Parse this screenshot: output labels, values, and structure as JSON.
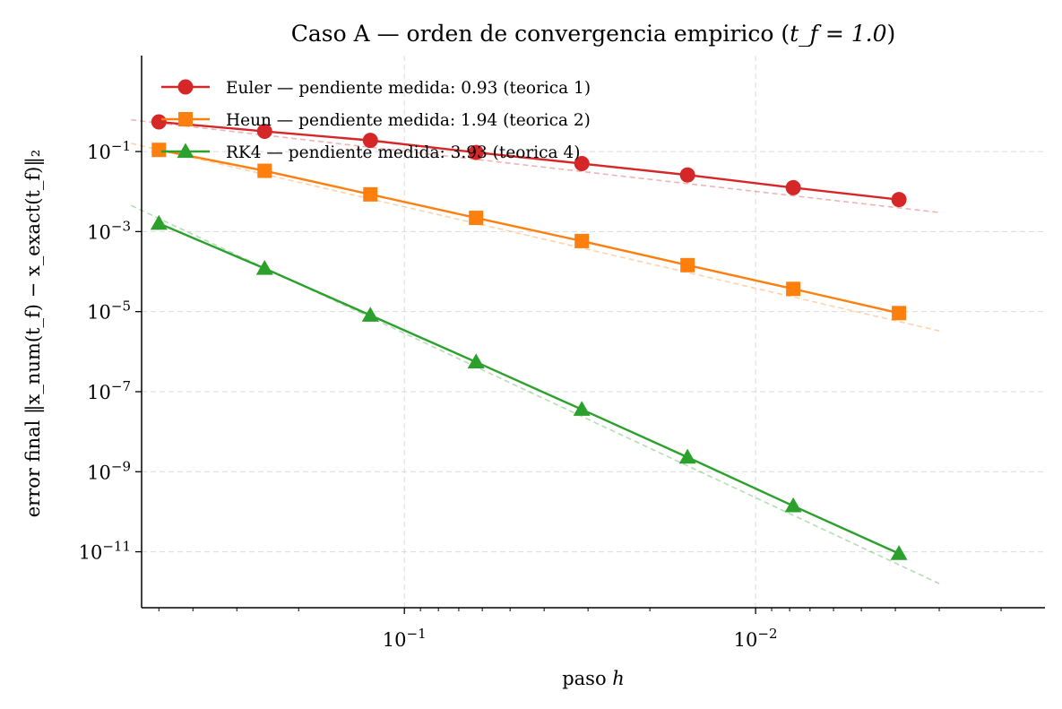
{
  "chart_data": {
    "type": "line",
    "title": "Caso A — orden de convergencia empirico (",
    "title_math": "t_f = 1.0",
    "title_end": ")",
    "xlabel_text": "paso ",
    "xlabel_math": "h",
    "ylabel": "error final ‖x_num(t_f) − x_exact(t_f)‖₂",
    "x_scale": "log",
    "y_scale": "log",
    "x_axis_inverted": true,
    "xlim": [
      0.56,
      0.0015
    ],
    "ylim": [
      4e-13,
      25
    ],
    "x_ticks": [
      {
        "value": 0.1,
        "base": "10",
        "exp": "−1"
      },
      {
        "value": 0.01,
        "base": "10",
        "exp": "−2"
      }
    ],
    "y_ticks": [
      {
        "value": 0.1,
        "base": "10",
        "exp": "−1"
      },
      {
        "value": 0.001,
        "base": "10",
        "exp": "−3"
      },
      {
        "value": 1e-05,
        "base": "10",
        "exp": "−5"
      },
      {
        "value": 1e-07,
        "base": "10",
        "exp": "−7"
      },
      {
        "value": 1e-09,
        "base": "10",
        "exp": "−9"
      },
      {
        "value": 1e-11,
        "base": "10",
        "exp": "−11"
      }
    ],
    "grid": true,
    "legend_position": "top-left",
    "x": [
      0.5,
      0.25,
      0.125,
      0.0625,
      0.03125,
      0.015625,
      0.0078125,
      0.00390625
    ],
    "series": [
      {
        "name": "Euler — pendiente medida: 0.93 (teorica 1)",
        "color": "#d62728",
        "marker": "circle",
        "values": [
          0.55,
          0.32,
          0.19,
          0.095,
          0.05,
          0.026,
          0.0125,
          0.0063
        ],
        "reference_line": {
          "x": [
            0.6,
            0.003
          ],
          "y": [
            0.62,
            0.003
          ]
        }
      },
      {
        "name": "Heun — pendiente medida: 1.94 (teorica 2)",
        "color": "#ff7f0e",
        "marker": "square",
        "values": [
          0.11,
          0.033,
          0.0085,
          0.0022,
          0.00058,
          0.000145,
          3.7e-05,
          9.2e-06
        ],
        "reference_line": {
          "x": [
            0.6,
            0.003
          ],
          "y": [
            0.16,
            3.3e-06
          ]
        }
      },
      {
        "name": "RK4 — pendiente medida: 3.93 (teorica 4)",
        "color": "#2ca02c",
        "marker": "triangle",
        "values": [
          0.0016,
          0.00012,
          8.1e-06,
          5.5e-07,
          3.6e-08,
          2.3e-09,
          1.4e-10,
          9e-12
        ],
        "reference_line": {
          "x": [
            0.6,
            0.003
          ],
          "y": [
            0.0045,
            1.6e-12
          ]
        }
      }
    ]
  }
}
